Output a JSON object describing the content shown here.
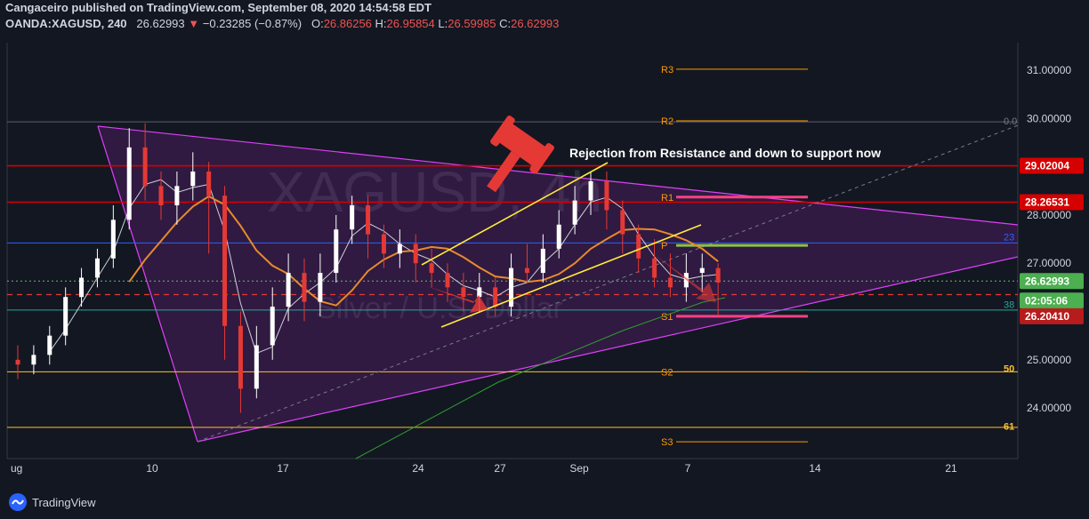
{
  "header": {
    "line1": "Cangaceiro published on TradingView.com, September 08, 2020 14:54:58 EDT",
    "symbol": "OANDA:XAGUSD, 240",
    "last": "26.62993",
    "change_arrow": "▼",
    "change": "−0.23285 (−0.87%)",
    "o_label": "O:",
    "o": "26.86256",
    "h_label": "H:",
    "h": "26.95854",
    "l_label": "L:",
    "l": "26.59985",
    "c_label": "C:",
    "c": "26.62993"
  },
  "footer": {
    "brand": "TradingView"
  },
  "watermark": {
    "symbol": "XAGUSD, 4h",
    "name": "Silver / U.S. Dollar"
  },
  "annotation": "Rejection from Resistance and down to support now",
  "colors": {
    "up": "#ffffff",
    "down": "#e53935",
    "triangle": "#e040fb",
    "channel": "#ffeb3b",
    "resistance": "#d50000",
    "support": "#ff4081",
    "pivot": "#8bc34a",
    "ma_fast": "#cfcfd8",
    "ma_slow": "#e68a2e",
    "ma_long": "#2e9e2e"
  },
  "chart_data": {
    "type": "candlestick",
    "ylim": [
      23.55,
      31.6
    ],
    "yticks": [
      "31.00000",
      "30.00000",
      "28.00000",
      "27.00000",
      "25.00000",
      "24.00000"
    ],
    "xticks": [
      "ug",
      "10",
      "17",
      "24",
      "27",
      "Sep",
      "7",
      "14",
      "21"
    ],
    "price_labels": [
      {
        "value": "29.02004",
        "y": 29.02,
        "color": "#d50000"
      },
      {
        "value": "28.26531",
        "y": 28.265,
        "color": "#d50000"
      },
      {
        "value": "26.62993",
        "y": 26.63,
        "color": "#4caf50"
      },
      {
        "value": "02:05:06",
        "y": 26.225,
        "color": "#4caf50"
      },
      {
        "value": "26.20410",
        "y": 25.9,
        "color": "#b71c1c"
      }
    ],
    "fib_labels": [
      {
        "text": "0.0",
        "y": 29.95
      },
      {
        "text": "23",
        "y": 27.55
      },
      {
        "text": "38",
        "y": 26.15
      },
      {
        "text": "50",
        "y": 24.82
      },
      {
        "text": "61",
        "y": 23.62
      }
    ],
    "pivots": [
      {
        "label": "R3",
        "y": 31.02
      },
      {
        "label": "R2",
        "y": 29.95
      },
      {
        "label": "R1",
        "y": 28.37
      },
      {
        "label": "P",
        "y": 27.37
      },
      {
        "label": "S1",
        "y": 25.9
      },
      {
        "label": "S2",
        "y": 24.75
      },
      {
        "label": "S3",
        "y": 23.3
      }
    ],
    "horizontal_levels": [
      29.93,
      29.02,
      28.265,
      27.42,
      26.63,
      26.35,
      26.03,
      24.75,
      23.6
    ],
    "candles": [
      [
        25.0,
        24.9,
        25.3,
        24.6
      ],
      [
        24.9,
        25.1,
        25.3,
        24.7
      ],
      [
        25.1,
        25.5,
        25.7,
        24.9
      ],
      [
        25.5,
        26.3,
        26.5,
        25.3
      ],
      [
        26.3,
        26.7,
        26.9,
        26.1
      ],
      [
        26.7,
        27.1,
        27.3,
        26.5
      ],
      [
        27.1,
        27.9,
        28.2,
        26.9
      ],
      [
        27.9,
        29.4,
        29.8,
        27.7
      ],
      [
        29.4,
        28.6,
        29.9,
        28.3
      ],
      [
        28.6,
        28.2,
        28.9,
        27.9
      ],
      [
        28.2,
        28.6,
        28.9,
        27.8
      ],
      [
        28.6,
        28.9,
        29.3,
        28.3
      ],
      [
        28.9,
        28.4,
        29.1,
        27.2
      ],
      [
        28.4,
        25.7,
        28.6,
        25.0
      ],
      [
        25.7,
        24.4,
        26.0,
        23.9
      ],
      [
        24.4,
        25.3,
        25.7,
        24.2
      ],
      [
        25.3,
        26.1,
        26.5,
        25.0
      ],
      [
        26.1,
        26.8,
        27.2,
        25.8
      ],
      [
        26.8,
        26.2,
        27.1,
        25.8
      ],
      [
        26.2,
        26.8,
        27.2,
        25.9
      ],
      [
        26.8,
        27.7,
        28.0,
        26.6
      ],
      [
        27.7,
        28.2,
        28.4,
        27.4
      ],
      [
        28.2,
        27.6,
        28.4,
        27.1
      ],
      [
        27.6,
        27.2,
        27.8,
        26.9
      ],
      [
        27.2,
        27.4,
        27.7,
        26.9
      ],
      [
        27.4,
        27.0,
        27.6,
        26.6
      ],
      [
        27.0,
        26.8,
        27.3,
        26.5
      ],
      [
        26.8,
        26.5,
        27.0,
        26.2
      ],
      [
        26.5,
        26.3,
        26.8,
        26.0
      ],
      [
        26.3,
        26.5,
        26.8,
        26.0
      ],
      [
        26.5,
        26.1,
        26.7,
        25.9
      ],
      [
        26.1,
        26.9,
        27.2,
        25.9
      ],
      [
        26.9,
        26.8,
        27.4,
        26.6
      ],
      [
        26.8,
        27.3,
        27.6,
        26.6
      ],
      [
        27.3,
        27.8,
        28.1,
        27.1
      ],
      [
        27.8,
        28.3,
        28.6,
        27.6
      ],
      [
        28.3,
        28.7,
        28.9,
        28.0
      ],
      [
        28.7,
        28.1,
        28.9,
        27.7
      ],
      [
        28.1,
        27.6,
        28.3,
        27.2
      ],
      [
        27.6,
        27.1,
        27.8,
        26.8
      ],
      [
        27.1,
        26.7,
        27.5,
        26.5
      ],
      [
        26.7,
        26.5,
        27.2,
        26.3
      ],
      [
        26.5,
        26.8,
        27.2,
        26.2
      ],
      [
        26.8,
        26.9,
        27.2,
        26.4
      ],
      [
        26.9,
        26.6,
        27.0,
        25.9
      ]
    ]
  }
}
